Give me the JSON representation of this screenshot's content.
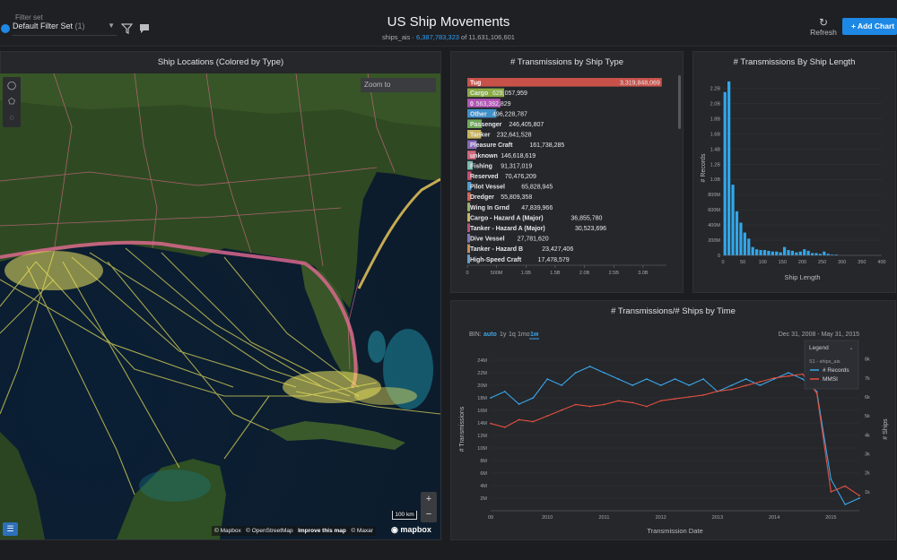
{
  "header": {
    "filter_label": "Filter set",
    "filter_value": "Default Filter Set",
    "filter_count": "(1)",
    "title": "US Ship Movements",
    "table": "ships_ais",
    "sep": " · ",
    "count_filtered": "6,387,783,323",
    "count_total": " of 11,631,106,601",
    "refresh_label": "Refresh",
    "add_chart_label": "Add Chart",
    "add_chart_plus": "+"
  },
  "map_panel": {
    "title": "Ship Locations (Colored by Type)",
    "zoom_to": "Zoom to",
    "scale": "100 km",
    "zoom_in": "+",
    "zoom_out": "−",
    "attribution": [
      "© Mapbox",
      "© OpenStreetMap",
      "Improve this map",
      "© Maxar"
    ],
    "logo": "mapbox"
  },
  "type_panel": {
    "title": "# Transmissions by Ship Type",
    "chart_data": {
      "type": "bar",
      "orientation": "horizontal",
      "categories": [
        "Tug",
        "Cargo",
        "0",
        "Other",
        "Passenger",
        "Tanker",
        "Pleasure Craft",
        "unknown",
        "Fishing",
        "Reserved",
        "Pilot Vessel",
        "Dredger",
        "Wing In Grnd",
        "Cargo - Hazard A (Major)",
        "Tanker - Hazard A (Major)",
        "Dive Vessel",
        "Tanker - Hazard B",
        "High-Speed Craft"
      ],
      "labels": [
        "3,319,848,069",
        "629,057,959",
        "563,392,829",
        "496,228,787",
        "246,405,807",
        "232,641,528",
        "161,738,285",
        "146,618,619",
        "91,317,019",
        "70,476,209",
        "65,828,945",
        "55,809,358",
        "47,839,966",
        "36,855,780",
        "30,523,696",
        "27,781,620",
        "23,427,406",
        "17,478,579"
      ],
      "values": [
        3319848069,
        629057959,
        563392829,
        496228787,
        246405807,
        232641528,
        161738285,
        146618619,
        91317019,
        70476209,
        65828945,
        55809358,
        47839966,
        36855780,
        30523696,
        27781620,
        23427406,
        17478579
      ],
      "colors": [
        "#c8524a",
        "#8bab46",
        "#b555b8",
        "#3f8fc8",
        "#6fa85a",
        "#c9b35b",
        "#8a68b8",
        "#d0687e",
        "#7fbab0",
        "#c74f6c",
        "#4d9dd0",
        "#d06557",
        "#9bb26a",
        "#c8b560",
        "#b7527c",
        "#7e7ab8",
        "#c98d5a",
        "#6f9ccc"
      ],
      "x_ticks": [
        "0",
        "500M",
        "1.0B",
        "1.5B",
        "2.0B",
        "2.5B",
        "3.0B"
      ],
      "xlim": [
        0,
        3400000000
      ]
    }
  },
  "length_panel": {
    "title": "# Transmissions By Ship Length",
    "chart_data": {
      "type": "bar",
      "bin_starts": [
        0,
        10,
        20,
        30,
        40,
        50,
        60,
        70,
        80,
        90,
        100,
        110,
        120,
        130,
        140,
        150,
        160,
        170,
        180,
        190,
        200,
        210,
        220,
        230,
        240,
        250,
        260,
        270,
        280,
        290,
        300,
        310,
        320,
        330,
        340,
        350,
        360,
        370,
        380,
        390
      ],
      "values": [
        2150000000,
        2290000000,
        930000000,
        580000000,
        430000000,
        300000000,
        220000000,
        110000000,
        80000000,
        70000000,
        70000000,
        60000000,
        50000000,
        50000000,
        40000000,
        110000000,
        70000000,
        60000000,
        40000000,
        50000000,
        80000000,
        60000000,
        30000000,
        30000000,
        20000000,
        50000000,
        20000000,
        10000000,
        10000000,
        0,
        0,
        0,
        0,
        0,
        0,
        0,
        0,
        0,
        0,
        0
      ],
      "color": "#33a6e8",
      "xlabel": "Ship Length",
      "ylabel": "# Records",
      "x_ticks": [
        "0",
        "50",
        "100",
        "150",
        "200",
        "250",
        "300",
        "350",
        "400"
      ],
      "y_ticks": [
        "0",
        "200M",
        "400M",
        "600M",
        "800M",
        "1.0B",
        "1.2B",
        "1.4B",
        "1.6B",
        "1.8B",
        "2.0B",
        "2.2B"
      ],
      "xlim": [
        0,
        400
      ],
      "ylim": [
        0,
        2300000000
      ]
    }
  },
  "time_panel": {
    "title": "# Transmissions/# Ships by Time",
    "bin_label": "BIN:",
    "bins": [
      "auto",
      "1y",
      "1q",
      "1mo",
      "1w"
    ],
    "date_range": "Dec 31, 2008 - May 31, 2015",
    "legend_title": "Legend",
    "legend_source": "S1 - ships_ais",
    "chart_data": {
      "type": "line",
      "x": [
        "2009",
        "2009.25",
        "2009.5",
        "2009.75",
        "2010",
        "2010.25",
        "2010.5",
        "2010.75",
        "2011",
        "2011.25",
        "2011.5",
        "2011.75",
        "2012",
        "2012.25",
        "2012.5",
        "2012.75",
        "2013",
        "2013.25",
        "2013.5",
        "2013.75",
        "2014",
        "2014.25",
        "2014.5",
        "2014.75",
        "2015",
        "2015.25",
        "2015.42"
      ],
      "series": [
        {
          "name": "# Records",
          "axis": "left",
          "color": "#3aa6ea",
          "values": [
            18,
            19,
            17,
            18,
            21,
            20,
            22,
            23,
            22,
            21,
            20,
            21,
            20,
            21,
            20,
            21,
            19,
            20,
            21,
            20,
            21,
            22,
            21,
            19,
            5,
            1,
            2
          ]
        },
        {
          "name": "MMSI",
          "axis": "right",
          "color": "#e4503f",
          "values": [
            4.6,
            4.4,
            4.8,
            4.7,
            5.0,
            5.3,
            5.6,
            5.5,
            5.6,
            5.8,
            5.7,
            5.5,
            5.8,
            5.9,
            6.0,
            6.1,
            6.3,
            6.4,
            6.6,
            6.8,
            7.0,
            7.1,
            7.2,
            6.2,
            1.0,
            1.3,
            0.8
          ]
        }
      ],
      "xlabel": "Transmission Date",
      "ylabel": "# Transmissions",
      "y2label": "# Ships",
      "x_ticks": [
        "09",
        "2010",
        "2011",
        "2012",
        "2013",
        "2014",
        "2015"
      ],
      "y_ticks": [
        "2M",
        "4M",
        "6M",
        "8M",
        "10M",
        "12M",
        "14M",
        "16M",
        "18M",
        "20M",
        "22M",
        "24M"
      ],
      "y2_ticks": [
        "1k",
        "2k",
        "3k",
        "4k",
        "5k",
        "6k",
        "7k",
        "8k"
      ],
      "ylim": [
        0,
        26
      ],
      "y2lim": [
        0,
        8.6
      ]
    }
  }
}
